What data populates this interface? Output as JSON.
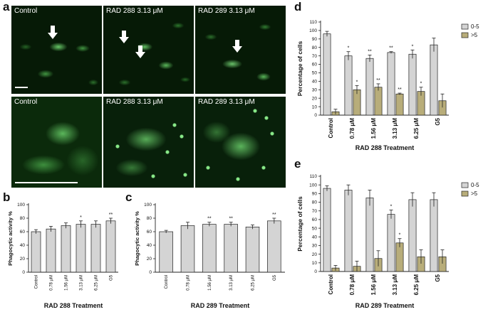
{
  "panels": {
    "a": "a",
    "b": "b",
    "c": "c",
    "d": "d",
    "e": "e"
  },
  "micrographs": {
    "top": [
      "Control",
      "RAD 288 3.13 μM",
      "RAD 289 3.13 μM"
    ],
    "bottom": [
      "Control",
      "RAD 288 3.13 μM",
      "RAD 289 3.13 μM"
    ]
  },
  "chart_data": [
    {
      "id": "b",
      "type": "bar",
      "categories": [
        "Control",
        "0.78 μM",
        "1.56 μM",
        "3.13 μM",
        "6.25 μM",
        "G5"
      ],
      "values": [
        60,
        64,
        69,
        71,
        71,
        76
      ],
      "errors": [
        3,
        4,
        4,
        5,
        5,
        4
      ],
      "significance": [
        "",
        "",
        "",
        "*",
        "",
        "**"
      ],
      "xlabel": "RAD 288 Treatment",
      "ylabel": "Phagocytic activity %",
      "ylim": [
        0,
        100
      ],
      "yticks": [
        0,
        20,
        40,
        60,
        80,
        100
      ],
      "bar_color": "#d4d4d4"
    },
    {
      "id": "c",
      "type": "bar",
      "categories": [
        "Control",
        "0.78 μM",
        "1.56 μM",
        "3.13 μM",
        "6.25 μM",
        "G5"
      ],
      "values": [
        60,
        69,
        71,
        71,
        67,
        76
      ],
      "errors": [
        2,
        5,
        3,
        3,
        3,
        4
      ],
      "significance": [
        "",
        "",
        "**",
        "**",
        "",
        "**"
      ],
      "xlabel": "RAD 289 Treatment",
      "ylabel": "Phagocytic activity %",
      "ylim": [
        0,
        100
      ],
      "yticks": [
        0,
        20,
        40,
        60,
        80,
        100
      ],
      "bar_color": "#d4d4d4"
    },
    {
      "id": "d",
      "type": "bar",
      "categories": [
        "Control",
        "0.78 μM",
        "1.56 μM",
        "3.13 μM",
        "6.25 μM",
        "G5"
      ],
      "series": [
        {
          "name": "0-5",
          "values": [
            96,
            70,
            67,
            74,
            72,
            83
          ],
          "errors": [
            3,
            5,
            4,
            1,
            5,
            8
          ],
          "significance": [
            "",
            "*",
            "**",
            "**",
            "*",
            ""
          ],
          "color": "#d4d4d4"
        },
        {
          "name": ">5",
          "values": [
            4,
            30,
            33,
            25,
            28,
            17
          ],
          "errors": [
            3,
            5,
            4,
            1,
            5,
            8
          ],
          "significance": [
            "",
            "*",
            "**",
            "**",
            "*",
            ""
          ],
          "color": "#b8ad7a"
        }
      ],
      "xlabel": "RAD 288 Treatment",
      "ylabel": "Percentage of cells",
      "ylim": [
        0,
        110
      ],
      "yticks": [
        0,
        10,
        20,
        30,
        40,
        50,
        60,
        70,
        80,
        90,
        100,
        110
      ],
      "legend": "top-right"
    },
    {
      "id": "e",
      "type": "bar",
      "categories": [
        "Control",
        "0.78 μM",
        "1.56 μM",
        "3.13 μM",
        "6.25 μM",
        "G5"
      ],
      "series": [
        {
          "name": "0-5",
          "values": [
            96,
            94,
            85,
            66,
            83,
            83
          ],
          "errors": [
            3,
            6,
            9,
            5,
            8,
            8
          ],
          "significance": [
            "",
            "",
            "",
            "*",
            "",
            ""
          ],
          "color": "#d4d4d4"
        },
        {
          "name": ">5",
          "values": [
            4,
            6,
            15,
            33,
            17,
            17
          ],
          "errors": [
            3,
            6,
            9,
            5,
            8,
            8
          ],
          "significance": [
            "",
            "",
            "",
            "*",
            "",
            ""
          ],
          "color": "#b8ad7a"
        }
      ],
      "xlabel": "RAD 289 Treatment",
      "ylabel": "Percentage of cells",
      "ylim": [
        0,
        110
      ],
      "yticks": [
        0,
        10,
        20,
        30,
        40,
        50,
        60,
        70,
        80,
        90,
        100,
        110
      ],
      "legend": "top-right"
    }
  ]
}
